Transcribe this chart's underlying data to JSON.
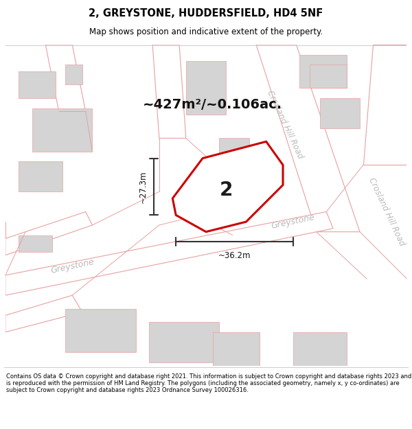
{
  "title": "2, GREYSTONE, HUDDERSFIELD, HD4 5NF",
  "subtitle": "Map shows position and indicative extent of the property.",
  "footer": "Contains OS data © Crown copyright and database right 2021. This information is subject to Crown copyright and database rights 2023 and is reproduced with the permission of HM Land Registry. The polygons (including the associated geometry, namely x, y co-ordinates) are subject to Crown copyright and database rights 2023 Ordnance Survey 100026316.",
  "area_label": "~427m²/~0.106ac.",
  "width_label": "~36.2m",
  "height_label": "~27.3m",
  "property_number": "2",
  "map_bg": "#f0f0f0",
  "road_fill": "#ffffff",
  "building_fill": "#d4d4d4",
  "road_stroke": "#e8a0a0",
  "highlight_stroke": "#cc0000",
  "dim_line_color": "#333333",
  "road_label_color": "#bbbbbb",
  "title_color": "#000000",
  "footer_color": "#000000",
  "title_fontsize": 10.5,
  "subtitle_fontsize": 8.5,
  "footer_fontsize": 6.0,
  "area_fontsize": 14,
  "dim_fontsize": 8.5,
  "property_label_fontsize": 20,
  "road_label_fontsize": 8.5
}
